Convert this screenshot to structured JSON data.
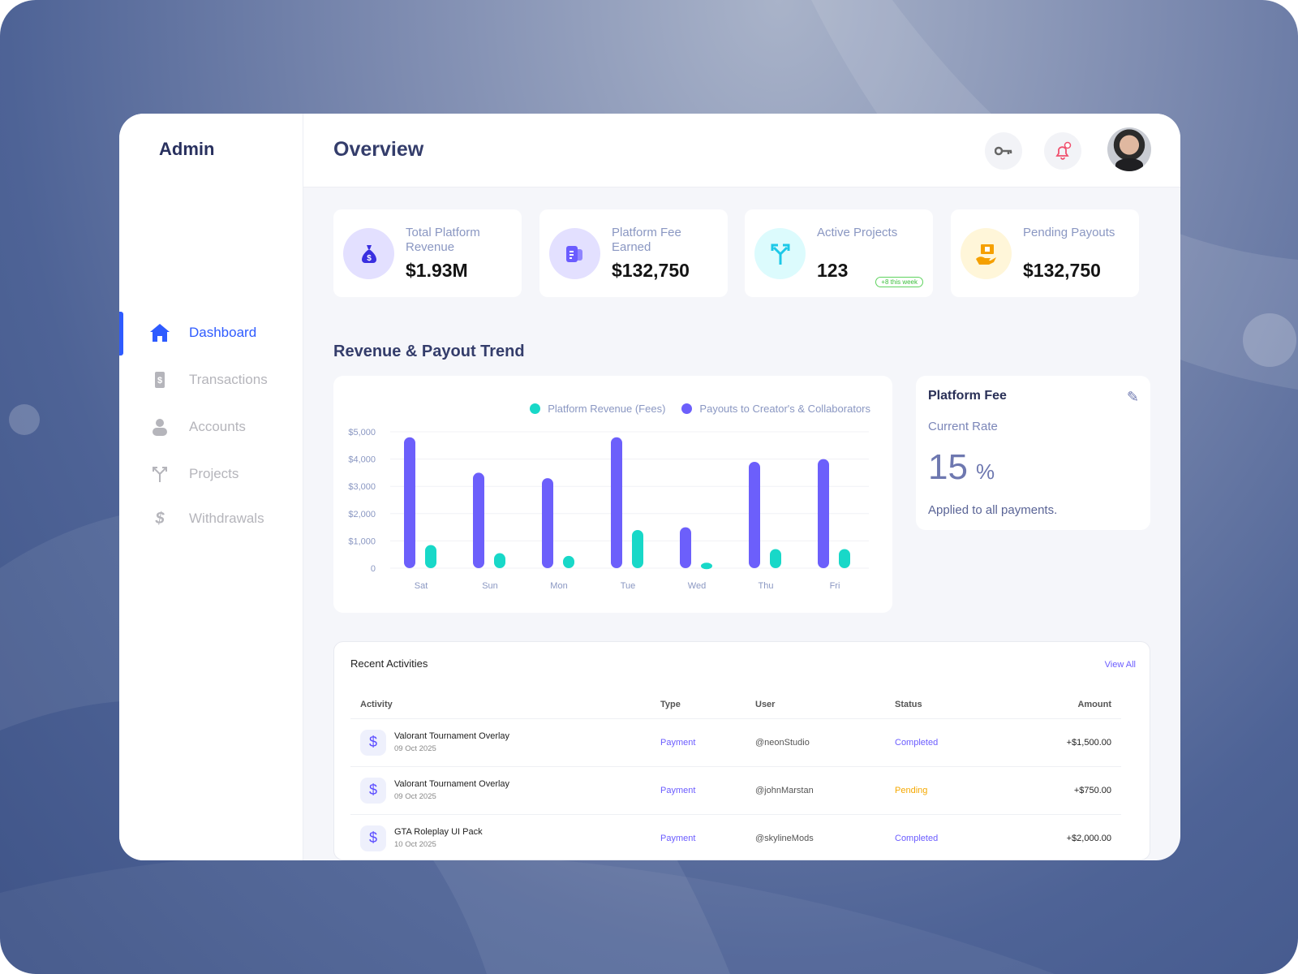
{
  "sidebar": {
    "logo": "Admin",
    "items": [
      {
        "label": "Dashboard",
        "icon": "home-icon",
        "active": true
      },
      {
        "label": "Transactions",
        "icon": "transactions-icon"
      },
      {
        "label": "Accounts",
        "icon": "user-icon"
      },
      {
        "label": "Projects",
        "icon": "fork-icon"
      },
      {
        "label": "Withdrawals",
        "icon": "withdraw-icon"
      }
    ]
  },
  "header": {
    "title": "Overview",
    "icons": [
      "key-icon",
      "bell-icon",
      "avatar"
    ]
  },
  "stats": [
    {
      "label": "Total Platform Revenue",
      "value": "$1.93M",
      "icon": "money-bag-icon",
      "color": "#3a2fe0",
      "bg": "#e3e0ff"
    },
    {
      "label": "Platform Fee Earned",
      "value": "$132,750",
      "icon": "receipt-icon",
      "color": "#6b5cff",
      "bg": "#e3e0ff"
    },
    {
      "label": "Active Projects",
      "value": "123",
      "badge": "+8 this week",
      "icon": "fork-icon",
      "color": "#1cc8e8",
      "bg": "#dcfbfd"
    },
    {
      "label": "Pending Payouts",
      "value": "$132,750",
      "icon": "payout-hand-icon",
      "color": "#f5a000",
      "bg": "#fff6d9"
    }
  ],
  "trend": {
    "title": "Revenue & Payout Trend"
  },
  "chart_data": {
    "type": "bar",
    "categories": [
      "Sat",
      "Sun",
      "Mon",
      "Tue",
      "Wed",
      "Thu",
      "Fri"
    ],
    "series": [
      {
        "name": "Payouts to Creator's & Collaborators",
        "color": "#6c5ffb",
        "values": [
          4800,
          3500,
          3300,
          4800,
          1500,
          3900,
          4000
        ]
      },
      {
        "name": "Platform Revenue (Fees)",
        "color": "#18d8c8",
        "values": [
          850,
          550,
          450,
          1400,
          200,
          700,
          700
        ]
      }
    ],
    "yticks": [
      "0",
      "$1,000",
      "$2,000",
      "$3,000",
      "$4,000",
      "$5,000"
    ],
    "ylim": [
      0,
      5000
    ],
    "grid": true,
    "legend": "top-right"
  },
  "fee": {
    "title": "Platform Fee",
    "subtitle": "Current Rate",
    "rate": "15",
    "unit": "%",
    "note": "Applied to all payments."
  },
  "recent": {
    "title": "Recent Activities",
    "view_all": "View All",
    "columns": [
      "Activity",
      "Type",
      "User",
      "Status",
      "Amount"
    ],
    "rows": [
      {
        "name": "Valorant Tournament Overlay",
        "date": "09 Oct 2025",
        "type": "Payment",
        "user": "@neonStudio",
        "status": "Completed",
        "amount": "+$1,500.00"
      },
      {
        "name": "Valorant Tournament Overlay",
        "date": "09 Oct 2025",
        "type": "Payment",
        "user": "@johnMarstan",
        "status": "Pending",
        "amount": "+$750.00"
      },
      {
        "name": "GTA Roleplay UI Pack",
        "date": "10 Oct 2025",
        "type": "Payment",
        "user": "@skylineMods",
        "status": "Completed",
        "amount": "+$2,000.00"
      }
    ]
  }
}
